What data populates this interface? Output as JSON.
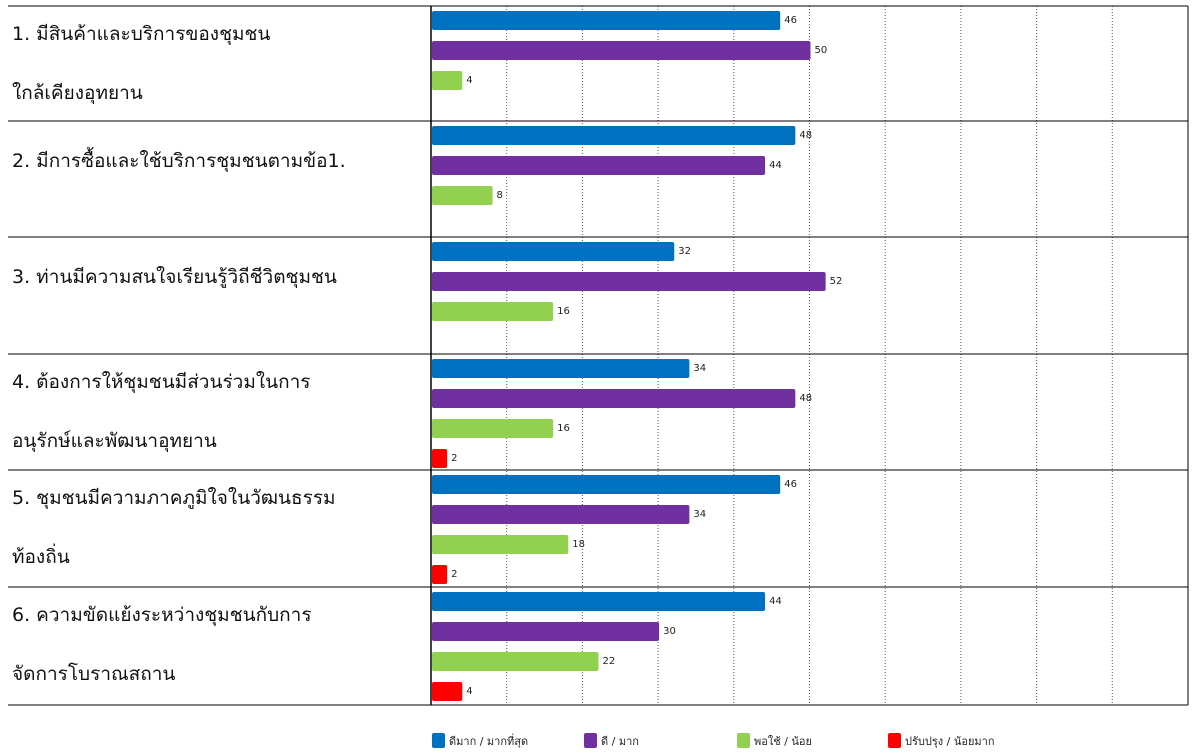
{
  "chart_data": {
    "type": "bar",
    "orientation": "horizontal",
    "xlim": [
      0,
      100
    ],
    "grid": "vertical dotted, every 10",
    "legend_position": "bottom",
    "categories": [
      [
        "1. มีสินค้าและบริการของชุมชน",
        "ใกล้เคียงอุทยาน"
      ],
      [
        "2. มีการซื้อและใช้บริการชุมชนตามข้อ1."
      ],
      [
        "3. ท่านมีความสนใจเรียนรู้วิถีชีวิตชุมชน"
      ],
      [
        "4. ต้องการให้ชุมชนมีส่วนร่วมในการ",
        "อนุรักษ์และพัฒนาอุทยาน"
      ],
      [
        "5. ชุมชนมีความภาคภูมิใจในวัฒนธรรม",
        "ท้องถิ่น"
      ],
      [
        "6. ความขัดแย้งระหว่างชุมชนกับการ",
        "จัดการโบราณสถาน"
      ]
    ],
    "series": [
      {
        "name": "ดีมาก / มากที่สุด",
        "color": "#0070c0",
        "values": [
          46,
          48,
          32,
          34,
          46,
          44
        ]
      },
      {
        "name": "ดี / มาก",
        "color": "#7030a0",
        "values": [
          50,
          44,
          52,
          48,
          34,
          30
        ]
      },
      {
        "name": "พอใช้ / น้อย",
        "color": "#92d050",
        "values": [
          4,
          8,
          16,
          16,
          18,
          22
        ]
      },
      {
        "name": "ปรับปรุง / น้อยมาก",
        "color": "#ff0000",
        "values": [
          null,
          null,
          null,
          2,
          2,
          4
        ]
      }
    ]
  }
}
